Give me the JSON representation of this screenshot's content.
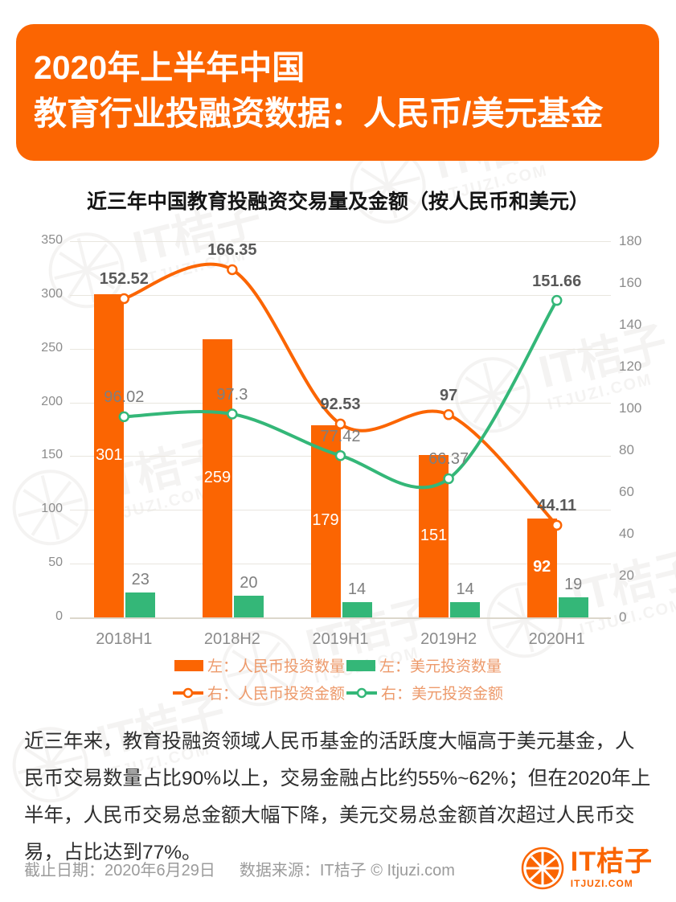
{
  "header": {
    "title_line1": "2020年上半年中国",
    "title_line2": "教育行业投融资数据：人民币/美元基金"
  },
  "chart_data": {
    "type": "bar+line-combo",
    "title": "近三年中国教育投融资交易量及金额（按人民币和美元）",
    "categories": [
      "2018H1",
      "2018H2",
      "2019H1",
      "2019H2",
      "2020H1"
    ],
    "left_axis": {
      "min": 0,
      "max": 350,
      "step": 50,
      "ticks": [
        0,
        50,
        100,
        150,
        200,
        250,
        300,
        350
      ]
    },
    "right_axis": {
      "min": 0,
      "max": 180,
      "step": 20,
      "ticks": [
        0,
        20,
        40,
        60,
        80,
        100,
        120,
        140,
        160,
        180
      ]
    },
    "grid": "horizontal-at-left-ticks",
    "legend_position": "bottom",
    "series": [
      {
        "name": "左：人民币投资数量",
        "type": "bar",
        "axis": "left",
        "color": "#fb6502",
        "values": [
          301,
          259,
          179,
          151,
          92
        ],
        "value_label_bold": "last"
      },
      {
        "name": "左：美元投资数量",
        "type": "bar",
        "axis": "left",
        "color": "#34b778",
        "values": [
          23,
          20,
          14,
          14,
          19
        ],
        "value_label_bold": "none"
      },
      {
        "name": "右：人民币投资金额",
        "type": "line",
        "axis": "right",
        "color": "#fb6502",
        "values": [
          152.52,
          166.35,
          92.53,
          97,
          44.11
        ],
        "value_label_bold": "all"
      },
      {
        "name": "右：美元投资金额",
        "type": "line",
        "axis": "right",
        "color": "#34b778",
        "values": [
          96.02,
          97.3,
          77.42,
          66.37,
          151.66
        ],
        "value_label_bold": "last"
      }
    ]
  },
  "body": {
    "paragraph": "近三年来，教育投融资领域人民币基金的活跃度大幅高于美元基金，人民币交易数量占比90%以上，交易金融占比约55%~62%；但在2020年上半年，人民币交易总金额大幅下降，美元交易总金额首次超过人民币交易，占比达到77%。"
  },
  "footer": {
    "date_label": "截止日期：2020年6月29日",
    "source_label": "数据来源：IT桔子 © Itjuzi.com",
    "logo_text": "IT桔子",
    "logo_sub": "ITJUZI.COM"
  },
  "watermark": {
    "text": "IT桔子",
    "sub": "ITJUZI.COM"
  },
  "colors": {
    "orange": "#fb6502",
    "green": "#34b778",
    "label_bold": "#595959",
    "label_gray": "#7f7f7f",
    "legend_text": "#ed9a6b",
    "grid": "#e9e6df"
  }
}
